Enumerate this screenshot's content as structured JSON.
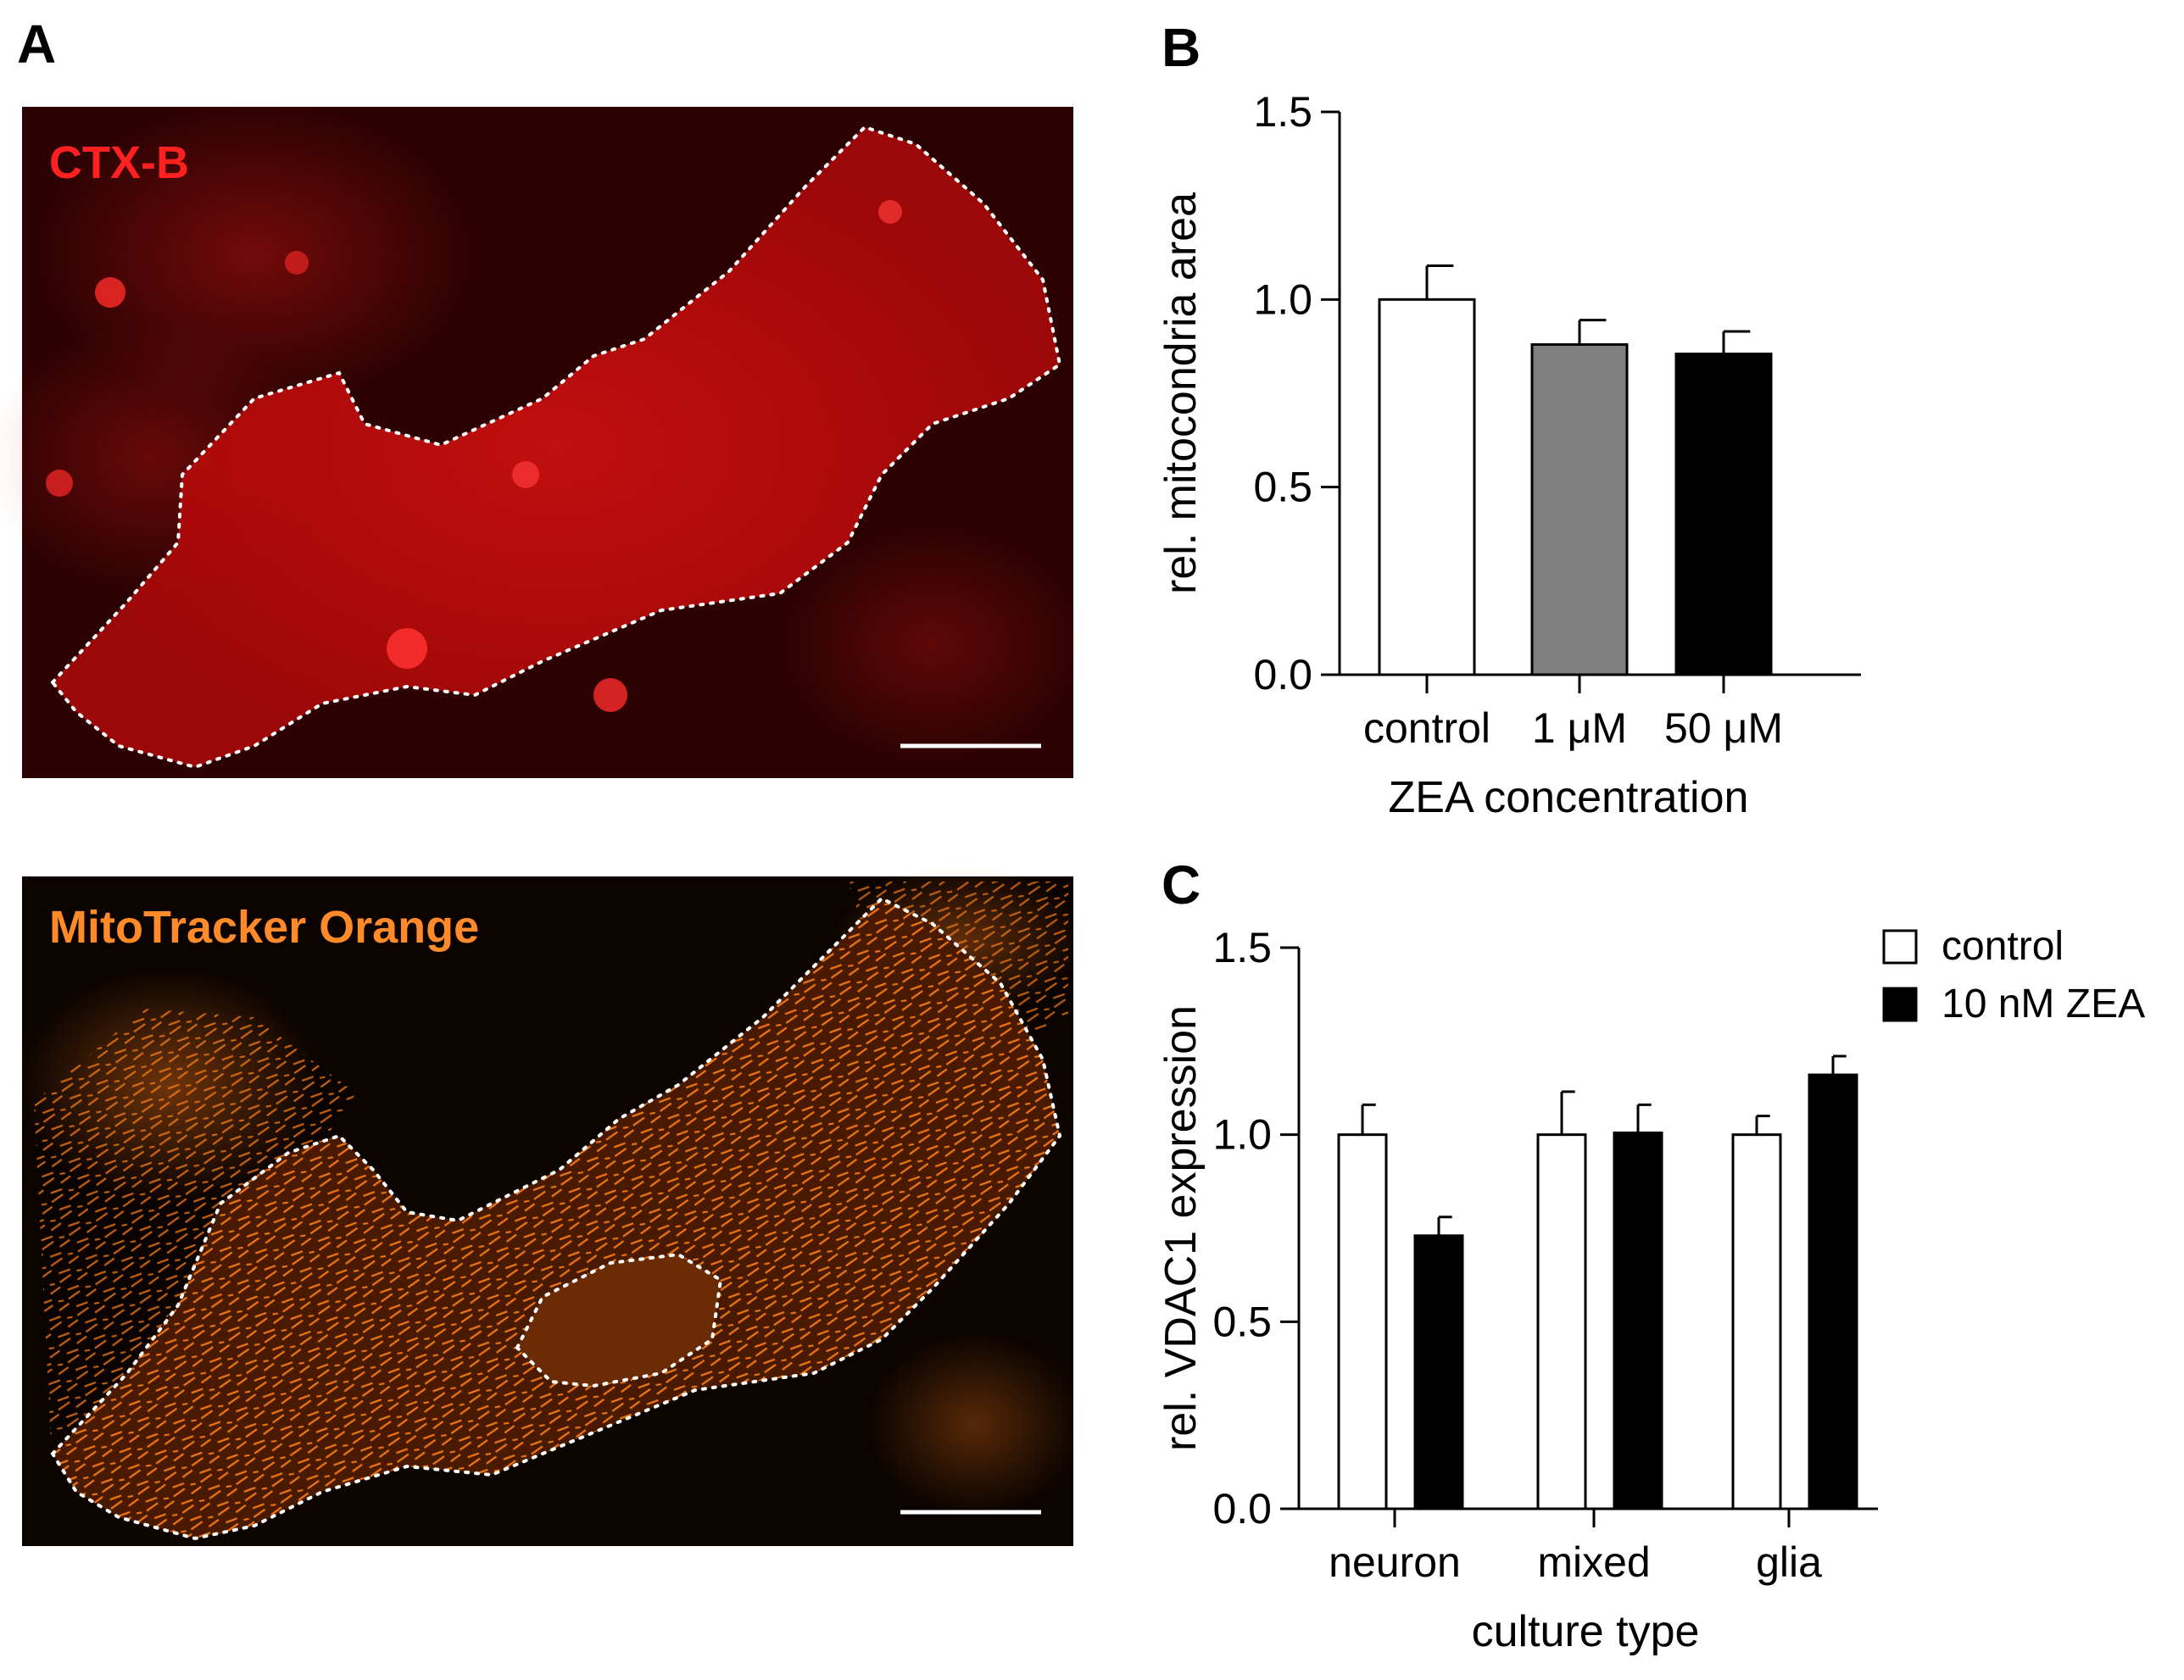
{
  "panel_a": {
    "letter": "A",
    "top_image": {
      "label": "CTX-B",
      "label_color": "#ff2020"
    },
    "bottom_image": {
      "label": "MitoTracker Orange",
      "label_color": "#ff8a2a"
    }
  },
  "chart_data": [
    {
      "panel": "B",
      "type": "bar",
      "categories": [
        "control",
        "1 μM",
        "50 μM"
      ],
      "values": [
        1.0,
        0.88,
        0.855
      ],
      "errors": [
        0.09,
        0.065,
        0.06
      ],
      "bar_colors": [
        "#ffffff",
        "#808080",
        "#000000"
      ],
      "title": "",
      "xlabel": "ZEA concentration",
      "ylabel": "rel. mitocondria area",
      "ylim": [
        0,
        1.5
      ],
      "yticks": [
        "0.0",
        "0.5",
        "1.0",
        "1.5"
      ]
    },
    {
      "panel": "C",
      "type": "bar",
      "categories": [
        "neuron",
        "mixed",
        "glia"
      ],
      "series": [
        {
          "name": "control",
          "color": "#ffffff",
          "values": [
            1.0,
            1.0,
            1.0
          ],
          "errors": [
            0.08,
            0.115,
            0.05
          ]
        },
        {
          "name": "10 nM ZEA",
          "color": "#000000",
          "values": [
            0.73,
            1.005,
            1.16
          ],
          "errors": [
            0.05,
            0.075,
            0.05
          ]
        }
      ],
      "title": "",
      "xlabel": "culture type",
      "ylabel": "rel. VDAC1 expression",
      "ylim": [
        0,
        1.5
      ],
      "yticks": [
        "0.0",
        "0.5",
        "1.0",
        "1.5"
      ],
      "legend": "top-right"
    }
  ]
}
